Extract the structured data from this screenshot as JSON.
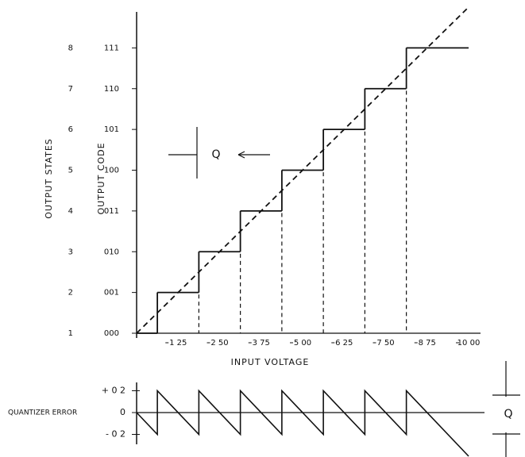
{
  "chart_data": [
    {
      "type": "step",
      "xlabel": "INPUT VOLTAGE",
      "ylabel": "OUTPUT CODE",
      "y2label": "OUTPUT STATES",
      "annotation": "Q",
      "xlim": [
        0,
        10
      ],
      "ylim": [
        0,
        8
      ],
      "y2lim": [
        1,
        9
      ],
      "xticks": [
        {
          "value": 1.25,
          "label": "1 25"
        },
        {
          "value": 2.5,
          "label": "2 50"
        },
        {
          "value": 3.75,
          "label": "3 75"
        },
        {
          "value": 5,
          "label": "5 00"
        },
        {
          "value": 6.25,
          "label": "6 25"
        },
        {
          "value": 7.5,
          "label": "7 50"
        },
        {
          "value": 8.75,
          "label": "8 75"
        },
        {
          "value": 10,
          "label": "10 00"
        }
      ],
      "yticks": [
        {
          "value": 0,
          "label": "000"
        },
        {
          "value": 1,
          "label": "001"
        },
        {
          "value": 2,
          "label": "010"
        },
        {
          "value": 3,
          "label": "011"
        },
        {
          "value": 4,
          "label": "100"
        },
        {
          "value": 5,
          "label": "101"
        },
        {
          "value": 6,
          "label": "110"
        },
        {
          "value": 7,
          "label": "111"
        }
      ],
      "y2ticks": [
        1,
        2,
        3,
        4,
        5,
        6,
        7,
        8
      ],
      "series": [
        {
          "color": "#111111",
          "x": [
            0,
            0.625,
            1.875,
            3.125,
            4.375,
            5.625,
            6.875,
            8.125,
            10
          ],
          "values": [
            0,
            1,
            2,
            3,
            4,
            5,
            6,
            7,
            7
          ]
        },
        {
          "color": "#111111",
          "dashed": true,
          "x": [
            0,
            10
          ],
          "values": [
            0,
            8
          ]
        }
      ]
    },
    {
      "type": "line",
      "ylabel": "QUANTIZER ERROR",
      "annotation": "Q",
      "xlim": [
        0,
        10
      ],
      "ylim": [
        -0.4,
        0.3
      ],
      "yticks": [
        {
          "value": 0.2,
          "label": "+ 0 2"
        },
        0,
        {
          "value": -0.2,
          "label": "- 0 2"
        }
      ],
      "series": [
        {
          "color": "#111111",
          "x": [
            0,
            0.625,
            0.625,
            1.875,
            1.875,
            3.125,
            3.125,
            4.375,
            4.375,
            5.625,
            5.625,
            6.875,
            6.875,
            8.125,
            8.125,
            10
          ],
          "values": [
            0,
            -0.2,
            0.2,
            -0.2,
            0.2,
            -0.2,
            0.2,
            -0.2,
            0.2,
            -0.2,
            0.2,
            -0.2,
            0.2,
            -0.2,
            0.2,
            -0.4
          ]
        }
      ]
    }
  ]
}
